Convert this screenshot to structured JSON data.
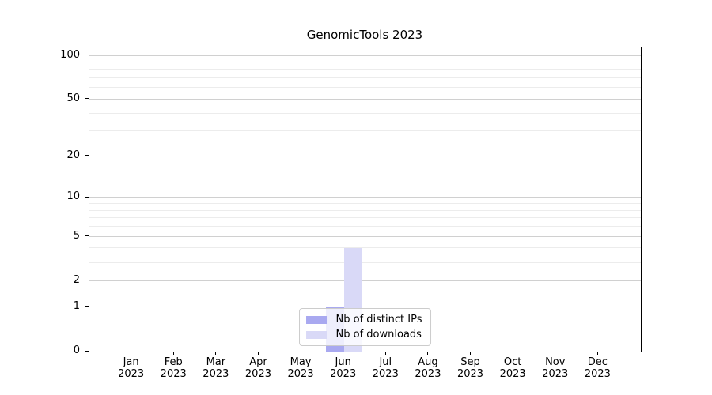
{
  "figure": {
    "background": "#ffffff"
  },
  "chart_data": {
    "type": "bar",
    "title": "GenomicTools 2023",
    "x_tick_months": [
      "Jan",
      "Feb",
      "Mar",
      "Apr",
      "May",
      "Jun",
      "Jul",
      "Aug",
      "Sep",
      "Oct",
      "Nov",
      "Dec"
    ],
    "x_tick_year": "2023",
    "series": [
      {
        "name": "Nb of distinct IPs",
        "color": "#a9a9f0",
        "values": [
          0,
          0,
          0,
          0,
          0,
          1,
          0,
          0,
          0,
          0,
          0,
          0
        ]
      },
      {
        "name": "Nb of downloads",
        "color": "#d9d9f7",
        "values": [
          0,
          0,
          0,
          0,
          0,
          4,
          0,
          0,
          0,
          0,
          0,
          0
        ]
      }
    ],
    "yscale": "log1p",
    "ylim": [
      0,
      114
    ],
    "yticks": [
      0,
      1,
      2,
      5,
      10,
      20,
      50,
      100
    ],
    "minor_gridlines": [
      3,
      4,
      6,
      7,
      8,
      9,
      30,
      40,
      60,
      70,
      80,
      90
    ],
    "grid": true,
    "legend": {
      "position": "lower center"
    }
  },
  "style": {
    "major_grid_color": "#d0d0d0",
    "minor_grid_color": "#ececec",
    "spine_color": "#000000",
    "text_color": "#000000",
    "legend_border_color": "#cccccc"
  }
}
